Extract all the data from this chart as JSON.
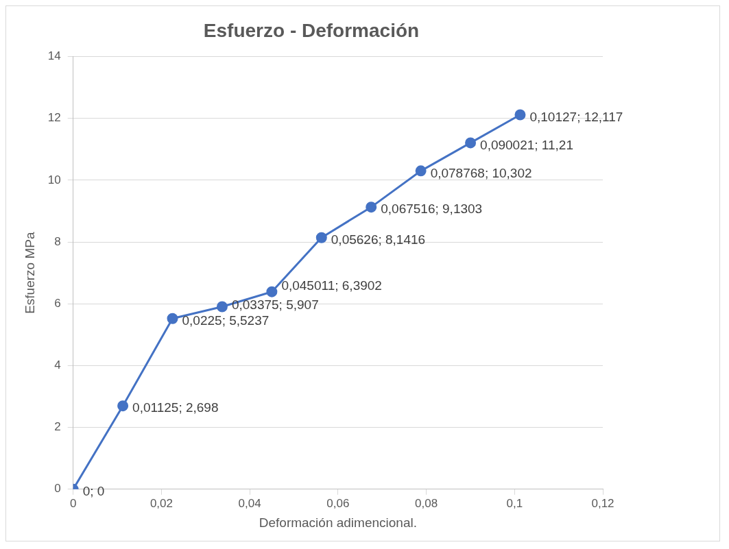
{
  "chart_data": {
    "type": "line",
    "title": "Esfuerzo - Deformación",
    "xlabel": "Deformación adimencional.",
    "ylabel": "Esfuerzo MPa",
    "x": [
      0,
      0.01125,
      0.0225,
      0.03375,
      0.045011,
      0.05626,
      0.067516,
      0.078768,
      0.090021,
      0.10127
    ],
    "series": [
      {
        "color": "#4472c4",
        "values": [
          0,
          2.698,
          5.5237,
          5.907,
          6.3902,
          8.1416,
          9.1303,
          10.302,
          11.21,
          12.117
        ],
        "value_labels": [
          "0; 0",
          "0,01125; 2,698",
          "0,0225; 5,5237",
          "0,03375; 5,907",
          "0,045011; 6,3902",
          "0,05626; 8,1416",
          "0,067516; 9,1303",
          "0,078768; 10,302",
          "0,090021; 11,21",
          "0,10127; 12,117"
        ]
      }
    ],
    "xlim": [
      0,
      0.12
    ],
    "xticks": [
      0,
      {
        "value": 0.02,
        "label": "0,02"
      },
      {
        "value": 0.04,
        "label": "0,04"
      },
      {
        "value": 0.06,
        "label": "0,06"
      },
      {
        "value": 0.08,
        "label": "0,08"
      },
      {
        "value": 0.1,
        "label": "0,1"
      },
      {
        "value": 0.12,
        "label": "0,12"
      }
    ],
    "ylim": [
      0,
      14
    ],
    "yticks": [
      0,
      2,
      4,
      6,
      8,
      10,
      12,
      14
    ],
    "grid": "y",
    "legend": false,
    "marker": "circle",
    "line_style": "solid"
  }
}
